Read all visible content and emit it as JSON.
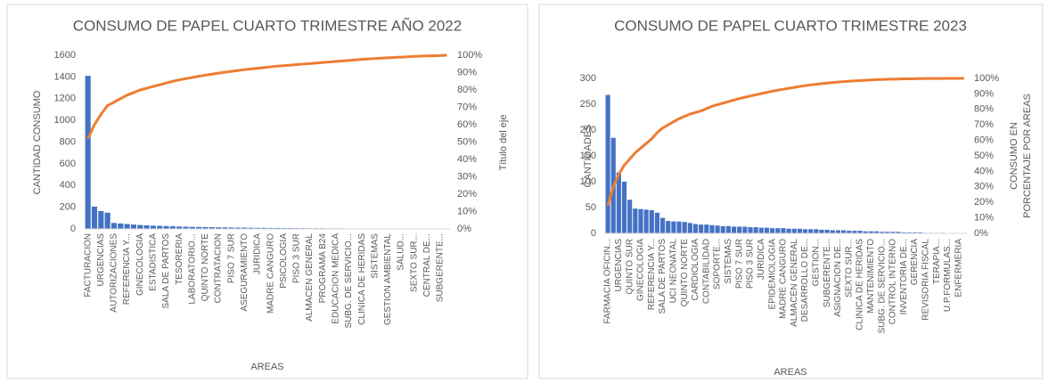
{
  "chart_data": [
    {
      "type": "pareto",
      "title": "CONSUMO DE PAPEL CUARTO TRIMESTRE AÑO 2022",
      "x_label": "AREAS",
      "y_label": "CANTIDAD CONSUMO",
      "y2_label": [
        "Título del eje"
      ],
      "categories": [
        "FACTURACION",
        null,
        "URGENCIAS",
        null,
        "AUTORIZACIONES",
        null,
        "REFERENCIA Y...",
        null,
        "GINECOLOGIA",
        null,
        "ESTADISTICA",
        null,
        "SALA DE PARTOS",
        null,
        "TESORERIA",
        null,
        "LABORATORIO...",
        null,
        "QUINTO NORTE",
        null,
        "CONTRATACION",
        null,
        "PISO 7 SUR",
        null,
        "ASEGURAMIENTO",
        null,
        "JURIDICA",
        null,
        "MADRE CANGURO",
        null,
        "PSICOLOGIA",
        null,
        "PISO 3 SUR",
        null,
        "ALMACEN GENERAL",
        null,
        "PROGRAMA B24",
        null,
        "EDUCACION MEDICA",
        null,
        "SUBG. DE SERVICIO...",
        null,
        "CLINICA DE HERIDAS",
        null,
        "SISTEMAS",
        null,
        "GESTION AMBIENTAL",
        null,
        "SALUD...",
        null,
        "SEXTO SUR...",
        null,
        "CENTRAL DE...",
        null,
        "SUBGERENTE...",
        null
      ],
      "series": [
        {
          "color": "#4472c4",
          "values": [
            1410,
            205,
            165,
            150,
            55,
            50,
            45,
            40,
            36,
            33,
            30,
            28,
            26,
            24,
            22,
            20,
            19,
            18,
            17,
            16,
            15,
            14,
            13,
            12,
            12,
            11,
            10,
            10,
            9,
            9,
            8,
            8,
            7,
            7,
            6,
            6,
            6,
            5,
            5,
            5,
            4,
            4,
            4,
            3,
            3,
            3,
            3,
            2,
            2,
            2,
            2,
            1,
            1,
            1,
            1,
            1
          ]
        },
        {
          "color": "#ed7d31",
          "axis": "y2",
          "values": [
            52,
            60,
            66,
            71,
            73,
            75,
            77,
            78.5,
            80,
            81,
            82,
            83,
            84,
            85,
            85.8,
            86.5,
            87.2,
            87.9,
            88.5,
            89.1,
            89.7,
            90.2,
            90.7,
            91.2,
            91.7,
            92.1,
            92.5,
            92.9,
            93.3,
            93.7,
            94,
            94.3,
            94.6,
            94.9,
            95.2,
            95.5,
            95.8,
            96.1,
            96.4,
            96.7,
            97,
            97.3,
            97.6,
            97.9,
            98.1,
            98.3,
            98.5,
            98.7,
            98.9,
            99.1,
            99.3,
            99.5,
            99.6,
            99.7,
            99.8,
            100
          ]
        }
      ],
      "ylim": [
        0,
        1600
      ],
      "yticks": [
        0,
        200,
        400,
        600,
        800,
        1000,
        1200,
        1400,
        1600
      ],
      "y2lim": [
        0,
        100
      ],
      "y2ticks": [
        {
          "value": 0,
          "label": "0%"
        },
        {
          "value": 10,
          "label": "10%"
        },
        {
          "value": 20,
          "label": "20%"
        },
        {
          "value": 30,
          "label": "30%"
        },
        {
          "value": 40,
          "label": "40%"
        },
        {
          "value": 50,
          "label": "50%"
        },
        {
          "value": 60,
          "label": "60%"
        },
        {
          "value": 70,
          "label": "70%"
        },
        {
          "value": 80,
          "label": "80%"
        },
        {
          "value": 90,
          "label": "90%"
        },
        {
          "value": 100,
          "label": "100%"
        }
      ]
    },
    {
      "type": "pareto",
      "title": "CONSUMO DE PAPEL CUARTO TRIMESTRE 2023",
      "x_label": "AREAS",
      "y_label": "CANTIDADES",
      "y2_label": [
        "CONSUMO EN",
        "PORCENTAJE POR AREAS"
      ],
      "categories": [
        "FARMACIA OFICIN...",
        null,
        "URGENCIAS",
        null,
        "QUINTO SUR",
        null,
        "GINECOLOGIA",
        null,
        "REFERENCIA Y...",
        null,
        "SALA DE PARTOS",
        null,
        "UCI NEONATAL",
        null,
        "QUINTO NORTE",
        null,
        "CARDIOLOGIA",
        null,
        "CONTABILIDAD",
        null,
        "SOPORTE...",
        null,
        "SISTEMAS",
        null,
        "PISO 7 SUR",
        null,
        "PISO 3 SUR",
        null,
        "JURIDICA",
        null,
        "EPIDEMIOLOGIA",
        null,
        "MADRE CANGURO",
        null,
        "ALMACEN GENERAL",
        null,
        "DESARROLLO DE...",
        null,
        "GESTION...",
        null,
        "SUBGERENTE...",
        null,
        "ASIGNACION DE...",
        null,
        "SEXTO SUR...",
        null,
        "CLINICA DE HERIDAS",
        null,
        "MANTENIMIENTO",
        null,
        "SUBG. DE SERVICIO...",
        null,
        "CONTROL INTERNO",
        null,
        "INVENTORIA DE...",
        null,
        "GERENCIA",
        null,
        "REVISORIA FISCAL",
        null,
        "TERAPIA...",
        null,
        "U.P.FORMULAS...",
        null,
        "ENFERMERIA",
        null
      ],
      "series": [
        {
          "color": "#4472c4",
          "values": [
            268,
            185,
            118,
            100,
            65,
            48,
            47,
            46,
            45,
            40,
            30,
            24,
            23,
            23,
            22,
            20,
            18,
            17,
            17,
            16,
            15,
            14,
            14,
            13,
            13,
            13,
            12,
            12,
            11,
            11,
            10,
            10,
            10,
            9,
            9,
            9,
            8,
            8,
            8,
            7,
            7,
            6,
            6,
            6,
            5,
            5,
            5,
            4,
            4,
            4,
            3,
            3,
            3,
            3,
            2,
            2,
            2,
            2,
            1,
            1,
            1,
            1,
            0,
            0,
            0,
            0
          ]
        },
        {
          "color": "#ed7d31",
          "axis": "y2",
          "values": [
            18,
            30,
            38,
            44,
            48,
            52,
            55,
            58,
            61,
            65,
            68,
            70,
            72,
            74,
            75.5,
            77,
            78,
            79,
            80.5,
            82,
            83,
            84,
            85,
            86,
            87,
            87.8,
            88.6,
            89.4,
            90.2,
            91,
            91.7,
            92.4,
            93,
            93.6,
            94.2,
            94.8,
            95.3,
            95.8,
            96.2,
            96.6,
            97,
            97.3,
            97.6,
            97.9,
            98.2,
            98.4,
            98.6,
            98.8,
            99,
            99.2,
            99.3,
            99.4,
            99.5,
            99.6,
            99.7,
            99.75,
            99.8,
            99.85,
            99.9,
            99.92,
            99.94,
            99.96,
            99.98,
            100,
            100,
            100
          ]
        }
      ],
      "ylim": [
        0,
        300
      ],
      "yticks": [
        0,
        50,
        100,
        150,
        200,
        250,
        300
      ],
      "y2lim": [
        0,
        100
      ],
      "y2ticks": [
        {
          "value": 0,
          "label": "0%"
        },
        {
          "value": 10,
          "label": "10%"
        },
        {
          "value": 20,
          "label": "20%"
        },
        {
          "value": 30,
          "label": "30%"
        },
        {
          "value": 40,
          "label": "40%"
        },
        {
          "value": 50,
          "label": "50%"
        },
        {
          "value": 60,
          "label": "60%"
        },
        {
          "value": 70,
          "label": "70%"
        },
        {
          "value": 80,
          "label": "80%"
        },
        {
          "value": 90,
          "label": "90%"
        },
        {
          "value": 100,
          "label": "100%"
        }
      ]
    }
  ]
}
